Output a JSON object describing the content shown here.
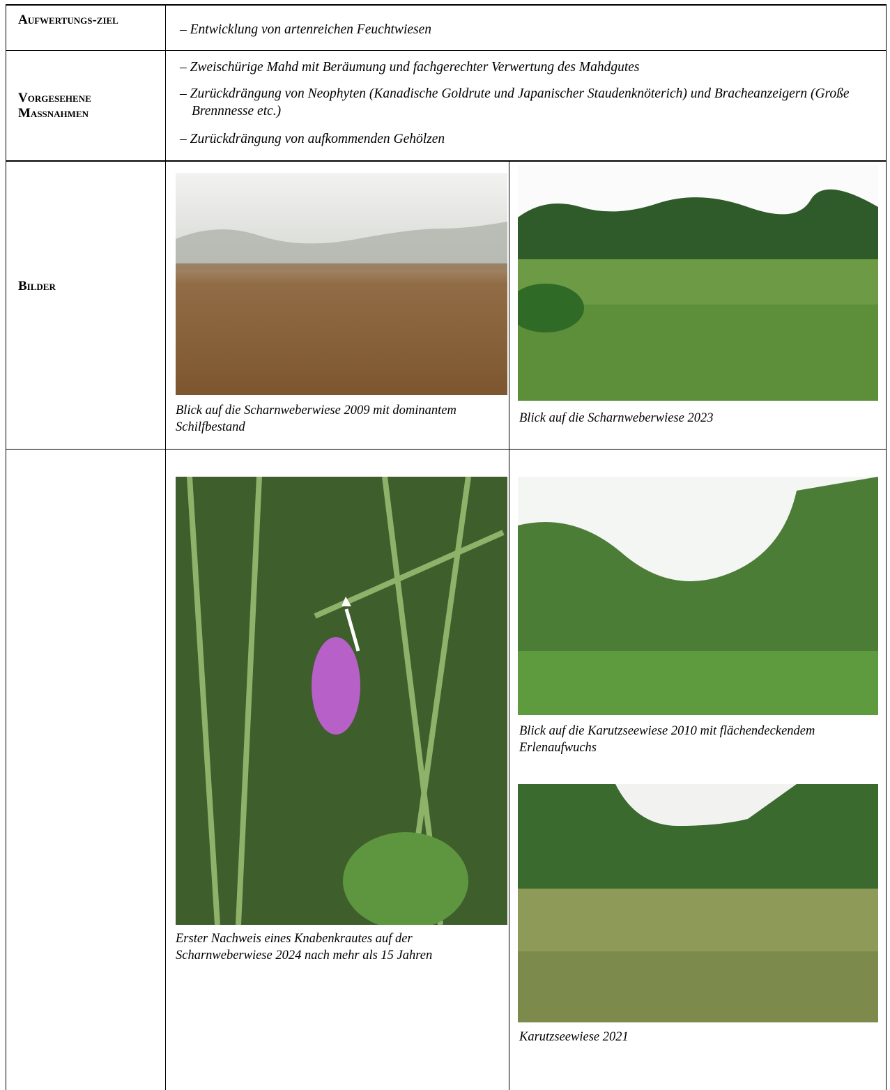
{
  "table": {
    "rows": [
      {
        "header": "Aufwertungs-ziel",
        "items": [
          "– Entwicklung von artenreichen Feuchtwiesen"
        ]
      },
      {
        "header": "Vorgesehene Maßnahmen",
        "items": [
          "– Zweischürige Mahd mit Beräumung und fachgerechter Verwertung des Mahdgutes",
          "– Zurückdrängung von Neophyten (Kanadische Goldrute und Japanischer Staudenknöterich) und Bracheanzeigern (Große Brennnesse etc.)",
          "– Zurückdrängung von aufkommenden Gehölzen"
        ]
      },
      {
        "header": "Bilder",
        "images": [
          {
            "caption": "Blick auf die Scharnweberwiese 2009 mit dominantem Schilfbestand"
          },
          {
            "caption": "Blick auf die Scharnweberwiese 2023"
          }
        ]
      },
      {
        "images": [
          {
            "caption": "Erster Nachweis eines Knabenkrautes auf der Scharnweberwiese 2024 nach mehr als 15 Jahren"
          },
          {
            "caption": "Blick auf die Karutzseewiese 2010 mit flächendeckendem Erlenaufwuchs"
          },
          {
            "caption": "Karutzseewiese 2021"
          }
        ]
      }
    ]
  }
}
